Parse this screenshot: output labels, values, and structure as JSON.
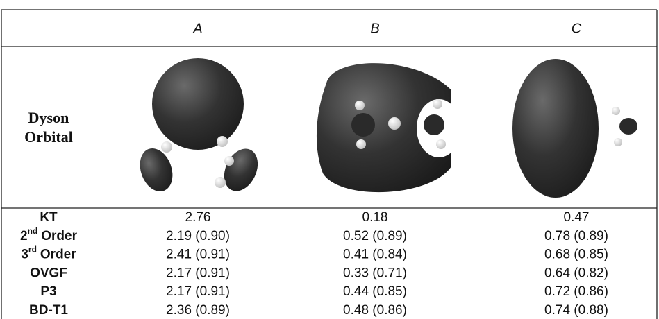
{
  "header": {
    "columns": [
      "A",
      "B",
      "C"
    ]
  },
  "orbital_row": {
    "label": [
      "Dyson",
      "Orbital"
    ]
  },
  "rows": [
    {
      "label": {
        "text": "KT"
      },
      "values": [
        "2.76",
        "0.18",
        "0.47"
      ]
    },
    {
      "label": {
        "base": "2",
        "sup": "nd",
        "text": "Order"
      },
      "values": [
        "2.19 (0.90)",
        "0.52 (0.89)",
        "0.78 (0.89)"
      ]
    },
    {
      "label": {
        "base": "3",
        "sup": "rd",
        "text": "Order"
      },
      "values": [
        "2.41 (0.91)",
        "0.41 (0.84)",
        "0.68 (0.85)"
      ]
    },
    {
      "label": {
        "text": "OVGF"
      },
      "values": [
        "2.17 (0.91)",
        "0.33 (0.71)",
        "0.64 (0.82)"
      ]
    },
    {
      "label": {
        "text": "P3"
      },
      "values": [
        "2.17 (0.91)",
        "0.44 (0.85)",
        "0.72 (0.86)"
      ]
    },
    {
      "label": {
        "text": "BD-T1"
      },
      "values": [
        "2.36 (0.89)",
        "0.48 (0.86)",
        "0.74 (0.88)"
      ]
    }
  ]
}
